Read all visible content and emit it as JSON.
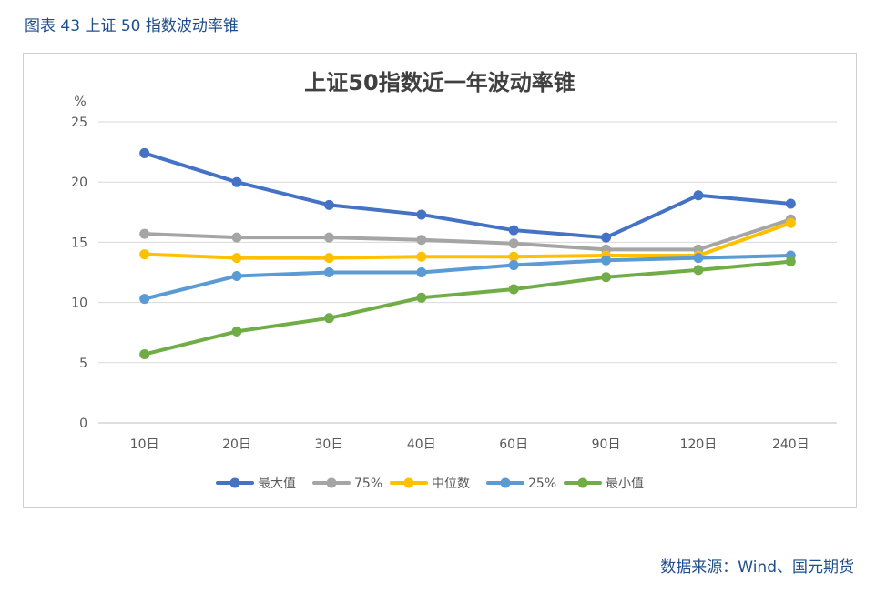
{
  "figure_caption": "图表 43 上证 50 指数波动率锥",
  "source_note": "数据来源：Wind、国元期货",
  "chart_data": {
    "type": "line",
    "title": "上证50指数近一年波动率锥",
    "ylabel": "%",
    "xlabel": "",
    "ylim": [
      0,
      25
    ],
    "yticks": [
      0,
      5,
      10,
      15,
      20,
      25
    ],
    "grid": true,
    "legend_position": "bottom",
    "categories": [
      "10日",
      "20日",
      "30日",
      "40日",
      "60日",
      "90日",
      "120日",
      "240日"
    ],
    "series": [
      {
        "name": "最大值",
        "color": "#4472c4",
        "values": [
          22.4,
          20.0,
          18.1,
          17.3,
          16.0,
          15.4,
          18.9,
          18.2
        ]
      },
      {
        "name": "75%",
        "color": "#a5a5a5",
        "values": [
          15.7,
          15.4,
          15.4,
          15.2,
          14.9,
          14.4,
          14.4,
          16.9
        ]
      },
      {
        "name": "中位数",
        "color": "#ffc000",
        "values": [
          14.0,
          13.7,
          13.7,
          13.8,
          13.8,
          13.9,
          13.9,
          16.6
        ]
      },
      {
        "name": "25%",
        "color": "#5b9bd5",
        "values": [
          10.3,
          12.2,
          12.5,
          12.5,
          13.1,
          13.5,
          13.7,
          13.9
        ]
      },
      {
        "name": "最小值",
        "color": "#70ad47",
        "values": [
          5.7,
          7.6,
          8.7,
          10.4,
          11.1,
          12.1,
          12.7,
          13.4
        ]
      }
    ]
  }
}
